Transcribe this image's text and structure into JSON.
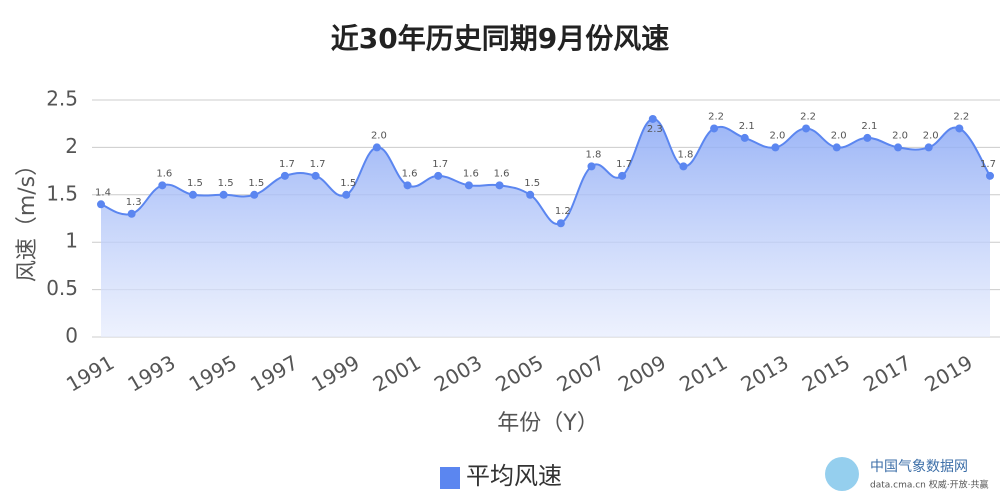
{
  "chart_data": {
    "type": "line",
    "title": "近30年历史同期9月份风速",
    "x_label": "年份（Y）",
    "y_label": "风速（m/s）",
    "categories": [
      "1991",
      null,
      "1993",
      null,
      "1995",
      null,
      "1997",
      null,
      "1999",
      null,
      "2001",
      null,
      "2003",
      null,
      "2005",
      null,
      "2007",
      null,
      "2009",
      null,
      "2011",
      null,
      "2013",
      null,
      "2015",
      null,
      "2017",
      null,
      "2019",
      null
    ],
    "series": [
      {
        "name": "平均风速",
        "color": "#5b86f0",
        "values": [
          1.4,
          1.3,
          1.6,
          1.5,
          1.5,
          1.5,
          1.7,
          1.7,
          1.5,
          2.0,
          1.6,
          1.7,
          1.6,
          1.6,
          1.5,
          1.2,
          1.8,
          1.7,
          2.3,
          1.8,
          2.2,
          2.1,
          2.0,
          2.2,
          2.0,
          2.1,
          2.0,
          2.0,
          2.2,
          1.7
        ],
        "value_labels": [
          "1.4",
          "1.3",
          "1.6",
          "1.5",
          "1.5",
          "1.5",
          "1.7",
          "1.7",
          "1.5",
          "2.0",
          "1.6",
          "1.7",
          "1.6",
          "1.6",
          "1.5",
          "1.2",
          "1.8",
          "1.7",
          "2.3",
          "1.8",
          "2.2",
          "2.1",
          "2.0",
          "2.2",
          "2.0",
          "2.1",
          "2.0",
          "2.0",
          "2.2",
          "1.7"
        ]
      }
    ],
    "ylim": [
      0,
      2.5
    ],
    "yticks": [
      0,
      0.5,
      1,
      1.5,
      2,
      2.5
    ],
    "grid": true,
    "watermark": {
      "name": "中国气象数据网",
      "url": "data.cma.cn 权威·开放·共赢"
    }
  }
}
